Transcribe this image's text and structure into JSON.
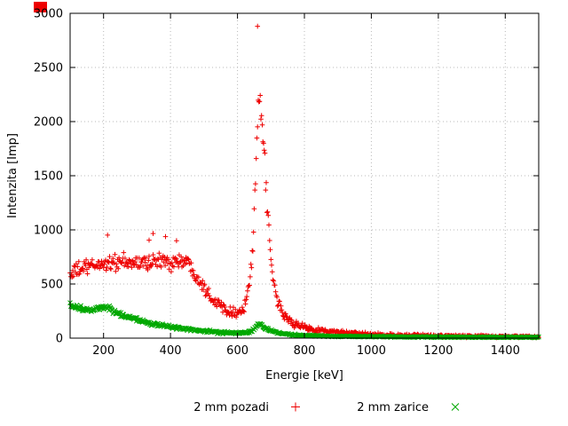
{
  "chart_data": {
    "type": "scatter",
    "title": "",
    "xlabel": "Energie [keV]",
    "ylabel": "Intenzita [Imp]",
    "xlim": [
      100,
      1500
    ],
    "ylim": [
      0,
      3000
    ],
    "xticks": [
      200,
      400,
      600,
      800,
      1000,
      1200,
      1400
    ],
    "yticks": [
      0,
      500,
      1000,
      1500,
      2000,
      2500,
      3000
    ],
    "grid": true,
    "grid_color": "#b8b8b8",
    "legend_position": "bottom",
    "series": [
      {
        "name": "2 mm pozadi",
        "marker": "plus",
        "color": "#ee0000",
        "noise_scale": 4.2,
        "anchors": [
          [
            100,
            590
          ],
          [
            130,
            640
          ],
          [
            160,
            660
          ],
          [
            200,
            690
          ],
          [
            240,
            700
          ],
          [
            280,
            690
          ],
          [
            320,
            700
          ],
          [
            360,
            710
          ],
          [
            400,
            705
          ],
          [
            430,
            715
          ],
          [
            455,
            690
          ],
          [
            470,
            620
          ],
          [
            490,
            520
          ],
          [
            510,
            430
          ],
          [
            530,
            350
          ],
          [
            560,
            280
          ],
          [
            585,
            245
          ],
          [
            605,
            235
          ],
          [
            620,
            280
          ],
          [
            635,
            480
          ],
          [
            645,
            800
          ],
          [
            652,
            1250
          ],
          [
            658,
            1800
          ],
          [
            663,
            2120
          ],
          [
            668,
            2180
          ],
          [
            673,
            2050
          ],
          [
            680,
            1700
          ],
          [
            688,
            1250
          ],
          [
            695,
            900
          ],
          [
            702,
            650
          ],
          [
            710,
            480
          ],
          [
            720,
            340
          ],
          [
            735,
            230
          ],
          [
            750,
            175
          ],
          [
            770,
            130
          ],
          [
            800,
            100
          ],
          [
            840,
            75
          ],
          [
            880,
            60
          ],
          [
            930,
            45
          ],
          [
            1000,
            32
          ],
          [
            1080,
            26
          ],
          [
            1160,
            22
          ],
          [
            1250,
            18
          ],
          [
            1350,
            15
          ],
          [
            1450,
            13
          ],
          [
            1500,
            12
          ]
        ],
        "outliers": [
          [
            660,
            2880
          ],
          [
            212,
            952
          ],
          [
            336,
            905
          ],
          [
            348,
            966
          ],
          [
            385,
            938
          ],
          [
            418,
            900
          ]
        ]
      },
      {
        "name": "2 mm zarice",
        "marker": "cross",
        "color": "#00a800",
        "noise_scale": 2.2,
        "anchors": [
          [
            100,
            300
          ],
          [
            120,
            285
          ],
          [
            140,
            265
          ],
          [
            160,
            255
          ],
          [
            180,
            270
          ],
          [
            200,
            290
          ],
          [
            215,
            280
          ],
          [
            235,
            240
          ],
          [
            260,
            205
          ],
          [
            290,
            175
          ],
          [
            320,
            150
          ],
          [
            350,
            130
          ],
          [
            380,
            115
          ],
          [
            410,
            100
          ],
          [
            440,
            88
          ],
          [
            470,
            75
          ],
          [
            500,
            65
          ],
          [
            540,
            55
          ],
          [
            580,
            47
          ],
          [
            610,
            45
          ],
          [
            630,
            52
          ],
          [
            645,
            75
          ],
          [
            655,
            105
          ],
          [
            663,
            128
          ],
          [
            670,
            122
          ],
          [
            680,
            100
          ],
          [
            690,
            80
          ],
          [
            705,
            62
          ],
          [
            720,
            50
          ],
          [
            740,
            40
          ],
          [
            770,
            30
          ],
          [
            800,
            25
          ],
          [
            850,
            20
          ],
          [
            900,
            17
          ],
          [
            1000,
            14
          ],
          [
            1100,
            12
          ],
          [
            1200,
            10
          ],
          [
            1300,
            9
          ],
          [
            1400,
            8
          ],
          [
            1500,
            8
          ]
        ],
        "outliers": []
      }
    ]
  }
}
